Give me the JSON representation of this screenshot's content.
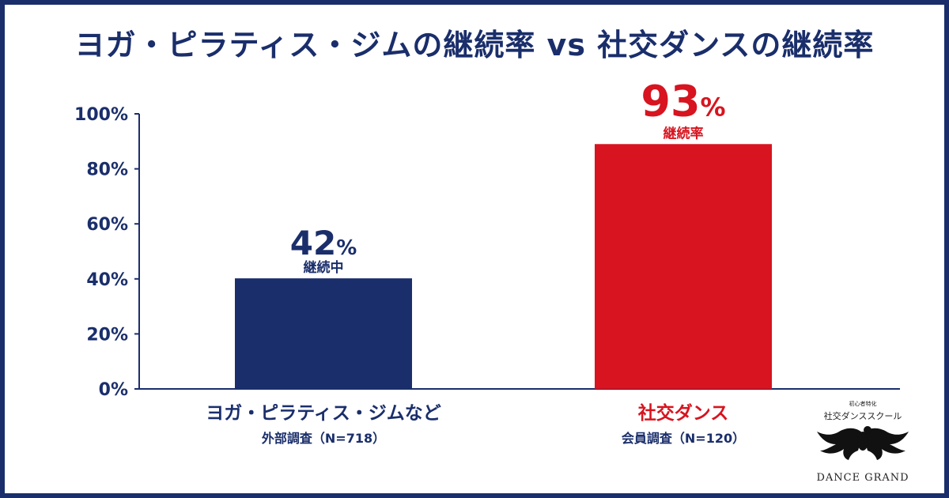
{
  "title": "ヨガ・ピラティス・ジムの継続率 vs 社交ダンスの継続率",
  "chart_data": {
    "type": "bar",
    "categories": [
      "ヨガ・ピラティス・ジムなど",
      "社交ダンス"
    ],
    "category_notes": [
      "外部調査（N=718）",
      "会員調査（N=120）"
    ],
    "values": [
      42,
      93
    ],
    "value_labels": [
      "42",
      "93"
    ],
    "value_unit": "%",
    "bar_captions": [
      "継続中",
      "継続率"
    ],
    "colors": [
      "#1a2e6b",
      "#d7141f"
    ],
    "ylim": [
      0,
      100
    ],
    "yticks": [
      0,
      20,
      40,
      60,
      80,
      100
    ],
    "ytick_labels": [
      "0%",
      "20%",
      "40%",
      "60%",
      "80%",
      "100%"
    ],
    "grid": false,
    "legend": "none"
  },
  "logo": {
    "tagline": "初心者特化",
    "subtitle": "社交ダンススクール",
    "brand": "DANCE GRAND",
    "icon": "winged-emblem-icon"
  }
}
